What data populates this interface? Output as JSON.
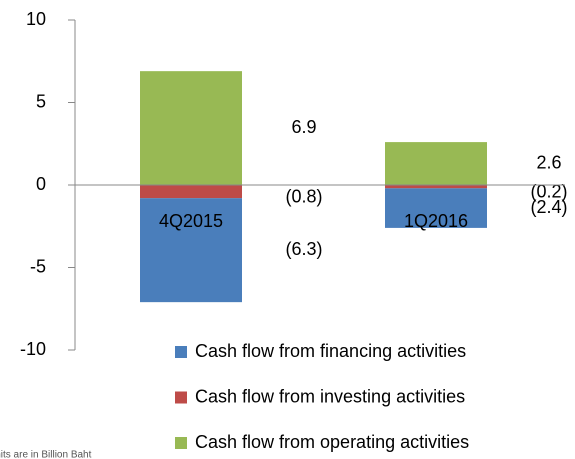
{
  "chart_data": {
    "type": "bar",
    "stacked": true,
    "categories": [
      "4Q2015",
      "1Q2016"
    ],
    "series": [
      {
        "name": "Cash flow from financing activities",
        "color": "#4a7ebb",
        "values": [
          -6.3,
          -2.4
        ],
        "value_labels": [
          "(6.3)",
          "(2.4)"
        ]
      },
      {
        "name": "Cash flow from investing activities",
        "color": "#be4b48",
        "values": [
          -0.8,
          -0.2
        ],
        "value_labels": [
          "(0.8)",
          "(0.2)"
        ]
      },
      {
        "name": "Cash flow from operating activities",
        "color": "#98b954",
        "values": [
          6.9,
          2.6
        ],
        "value_labels": [
          "6.9",
          "2.6"
        ]
      }
    ],
    "ylim": [
      -10,
      10
    ],
    "yticks": [
      -10,
      -5,
      0,
      5,
      10
    ],
    "grid": false,
    "legend": "bottom-right",
    "footnote": "Units are in Billion Baht"
  }
}
